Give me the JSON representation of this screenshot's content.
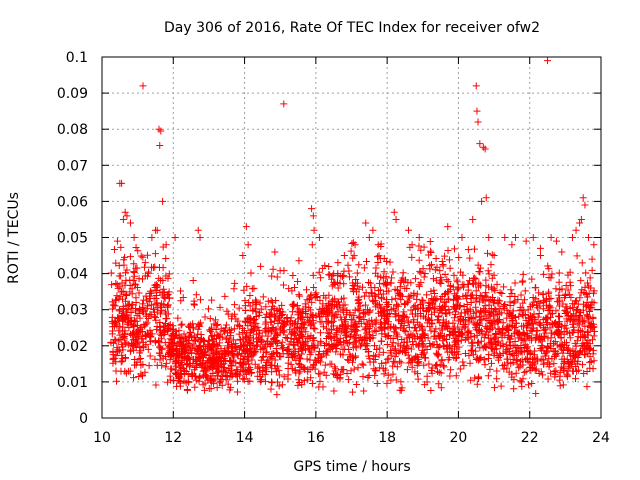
{
  "chart_data": {
    "type": "scatter",
    "title": "Day 306 of 2016, Rate Of TEC Index for receiver ofw2",
    "xlabel": "GPS time / hours",
    "ylabel": "ROTI / TECUs",
    "xlim": [
      10,
      24
    ],
    "ylim": [
      0,
      0.1
    ],
    "x_ticks": [
      10,
      12,
      14,
      16,
      18,
      20,
      22,
      24
    ],
    "x_tick_labels": [
      "10",
      "12",
      "14",
      "16",
      "18",
      "20",
      "22",
      "24"
    ],
    "y_ticks": [
      0,
      0.01,
      0.02,
      0.03,
      0.04,
      0.05,
      0.06,
      0.07,
      0.08,
      0.09,
      0.1
    ],
    "y_tick_labels": [
      "0",
      "0.01",
      "0.02",
      "0.03",
      "0.04",
      "0.05",
      "0.06",
      "0.07",
      "0.08",
      "0.09",
      "0.1"
    ],
    "grid": true,
    "marker": "+",
    "colors": {
      "marker": "#ff0000",
      "grid": "#a0a0a0",
      "axis": "#000000"
    },
    "series": [
      {
        "name": "ofw2",
        "x": [
          10.5,
          10.55,
          11.15,
          11.6,
          11.65,
          11.62,
          11.7,
          15.1,
          15.88,
          15.93,
          20.5,
          20.52,
          20.55,
          20.6,
          20.7,
          20.75,
          20.78,
          22.5,
          23.5,
          23.55,
          23.45,
          10.6,
          10.65,
          10.7,
          10.8,
          10.9,
          11.4,
          11.5,
          11.55,
          11.8,
          12.05,
          12.7,
          12.75,
          13.95,
          14.05,
          14.1,
          14.45,
          14.85,
          15.9,
          15.95,
          16.1,
          16.5,
          16.8,
          17.1,
          17.4,
          17.5,
          17.6,
          17.75,
          18.2,
          18.25,
          18.6,
          18.7,
          18.9,
          19.7,
          20.1,
          20.4,
          20.65,
          20.85,
          21.0,
          21.3,
          21.5,
          21.6,
          21.9,
          22.1,
          22.3,
          22.6,
          22.75,
          22.9,
          23.2,
          23.3,
          23.4,
          23.65,
          23.75,
          23.8
        ],
        "y": [
          0.065,
          0.065,
          0.092,
          0.08,
          0.0795,
          0.0755,
          0.06,
          0.087,
          0.058,
          0.056,
          0.092,
          0.085,
          0.082,
          0.076,
          0.075,
          0.0745,
          0.061,
          0.099,
          0.061,
          0.059,
          0.055,
          0.055,
          0.057,
          0.056,
          0.054,
          0.05,
          0.05,
          0.052,
          0.052,
          0.048,
          0.05,
          0.052,
          0.05,
          0.045,
          0.053,
          0.048,
          0.042,
          0.046,
          0.048,
          0.052,
          0.05,
          0.04,
          0.045,
          0.048,
          0.054,
          0.05,
          0.052,
          0.048,
          0.057,
          0.055,
          0.052,
          0.048,
          0.05,
          0.053,
          0.05,
          0.055,
          0.06,
          0.05,
          0.045,
          0.05,
          0.048,
          0.05,
          0.049,
          0.05,
          0.047,
          0.05,
          0.049,
          0.046,
          0.05,
          0.052,
          0.054,
          0.05,
          0.044,
          0.048
        ]
      }
    ]
  }
}
